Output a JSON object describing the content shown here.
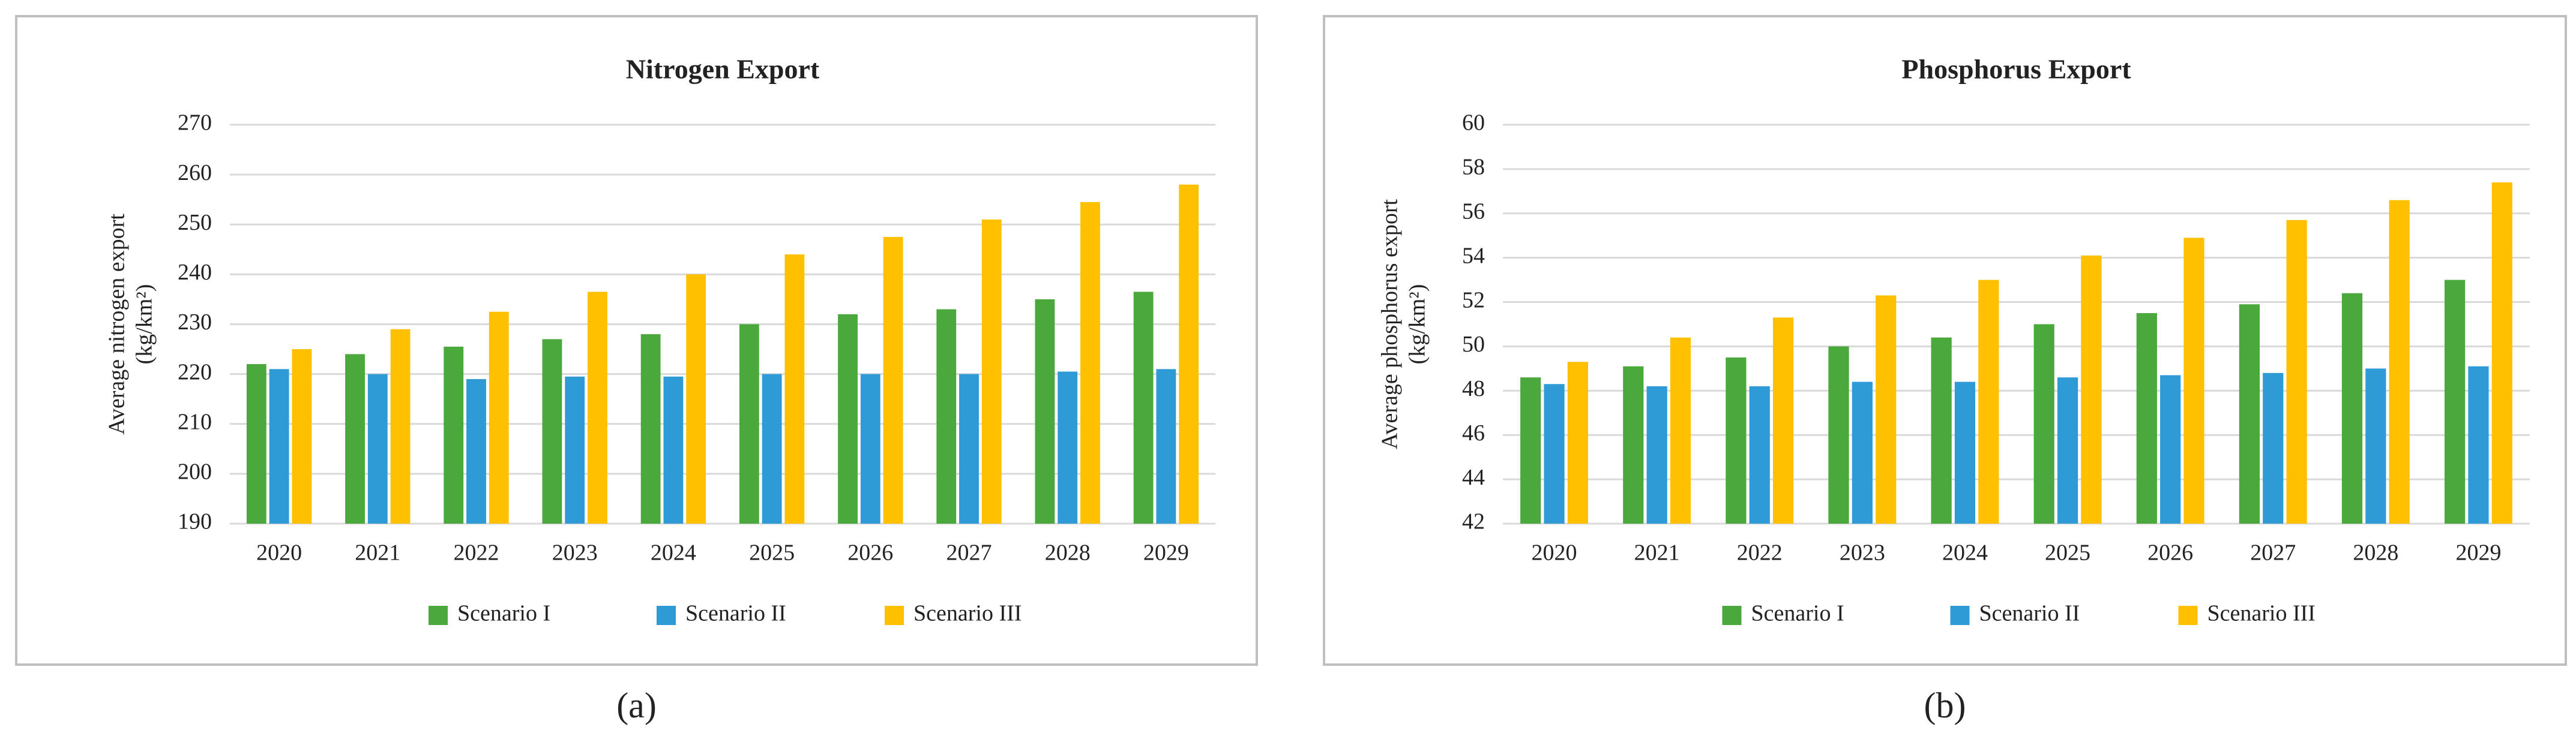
{
  "chart_data": [
    {
      "type": "bar",
      "title": "Nitrogen Export",
      "y_label": [
        "Average nitrogen export",
        "(kg/km²)"
      ],
      "caption": "(a)",
      "categories": [
        "2020",
        "2021",
        "2022",
        "2023",
        "2024",
        "2025",
        "2026",
        "2027",
        "2028",
        "2029"
      ],
      "series": [
        {
          "name": "Scenario I",
          "color": "#4aa83c",
          "values": [
            222,
            224,
            225.5,
            227,
            228,
            230,
            232,
            233,
            235,
            236.5
          ]
        },
        {
          "name": "Scenario II",
          "color": "#2e9bd6",
          "values": [
            221,
            220,
            219,
            219.5,
            219.5,
            220,
            220,
            220,
            220.5,
            221
          ]
        },
        {
          "name": "Scenario III",
          "color": "#ffc000",
          "values": [
            225,
            229,
            232.5,
            236.5,
            240,
            244,
            247.5,
            251,
            254.5,
            258
          ]
        }
      ],
      "ylim": [
        190,
        270
      ],
      "yticks": [
        190,
        200,
        210,
        220,
        230,
        240,
        250,
        260,
        270
      ],
      "grid": true,
      "legend": "bottom"
    },
    {
      "type": "bar",
      "title": "Phosphorus Export",
      "y_label": [
        "Average phosphorus export",
        "(kg/km²)"
      ],
      "caption": "(b)",
      "categories": [
        "2020",
        "2021",
        "2022",
        "2023",
        "2024",
        "2025",
        "2026",
        "2027",
        "2028",
        "2029"
      ],
      "series": [
        {
          "name": "Scenario I",
          "color": "#4aa83c",
          "values": [
            48.6,
            49.1,
            49.5,
            50.0,
            50.4,
            51.0,
            51.5,
            51.9,
            52.4,
            53.0
          ]
        },
        {
          "name": "Scenario II",
          "color": "#2e9bd6",
          "values": [
            48.3,
            48.2,
            48.2,
            48.4,
            48.4,
            48.6,
            48.7,
            48.8,
            49.0,
            49.1
          ]
        },
        {
          "name": "Scenario III",
          "color": "#ffc000",
          "values": [
            49.3,
            50.4,
            51.3,
            52.3,
            53.0,
            54.1,
            54.9,
            55.7,
            56.6,
            57.4
          ]
        }
      ],
      "ylim": [
        42,
        60
      ],
      "yticks": [
        42,
        44,
        46,
        48,
        50,
        52,
        54,
        56,
        58,
        60
      ],
      "grid": true,
      "legend": "bottom"
    }
  ]
}
